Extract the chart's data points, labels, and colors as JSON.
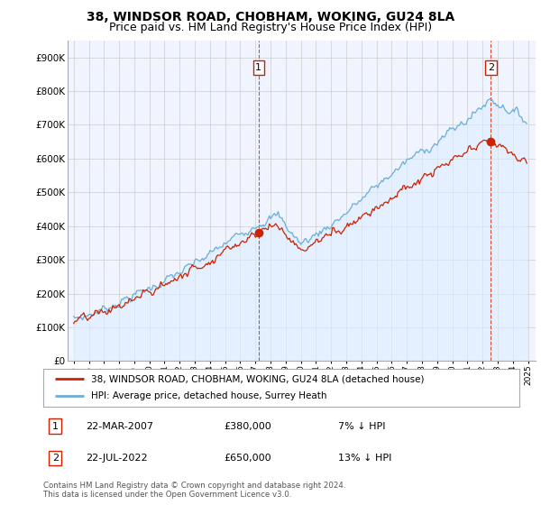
{
  "title": "38, WINDSOR ROAD, CHOBHAM, WOKING, GU24 8LA",
  "subtitle": "Price paid vs. HM Land Registry's House Price Index (HPI)",
  "ylim": [
    0,
    950000
  ],
  "yticks": [
    0,
    100000,
    200000,
    300000,
    400000,
    500000,
    600000,
    700000,
    800000,
    900000
  ],
  "ytick_labels": [
    "£0",
    "£100K",
    "£200K",
    "£300K",
    "£400K",
    "£500K",
    "£600K",
    "£700K",
    "£800K",
    "£900K"
  ],
  "sale1_year": 2007.21,
  "sale1_price": 380000,
  "sale2_year": 2022.55,
  "sale2_price": 650000,
  "hpi_color": "#6baed6",
  "hpi_fill_color": "#ddeeff",
  "price_color": "#cc2200",
  "vline_color": "#cc2200",
  "legend_entry1": "38, WINDSOR ROAD, CHOBHAM, WOKING, GU24 8LA (detached house)",
  "legend_entry2": "HPI: Average price, detached house, Surrey Heath",
  "table_row1": [
    "1",
    "22-MAR-2007",
    "£380,000",
    "7% ↓ HPI"
  ],
  "table_row2": [
    "2",
    "22-JUL-2022",
    "£650,000",
    "13% ↓ HPI"
  ],
  "footer": "Contains HM Land Registry data © Crown copyright and database right 2024.\nThis data is licensed under the Open Government Licence v3.0.",
  "bg_color": "#ffffff",
  "chart_bg_color": "#f0f4ff",
  "grid_color": "#cccccc",
  "title_fontsize": 10,
  "subtitle_fontsize": 9
}
